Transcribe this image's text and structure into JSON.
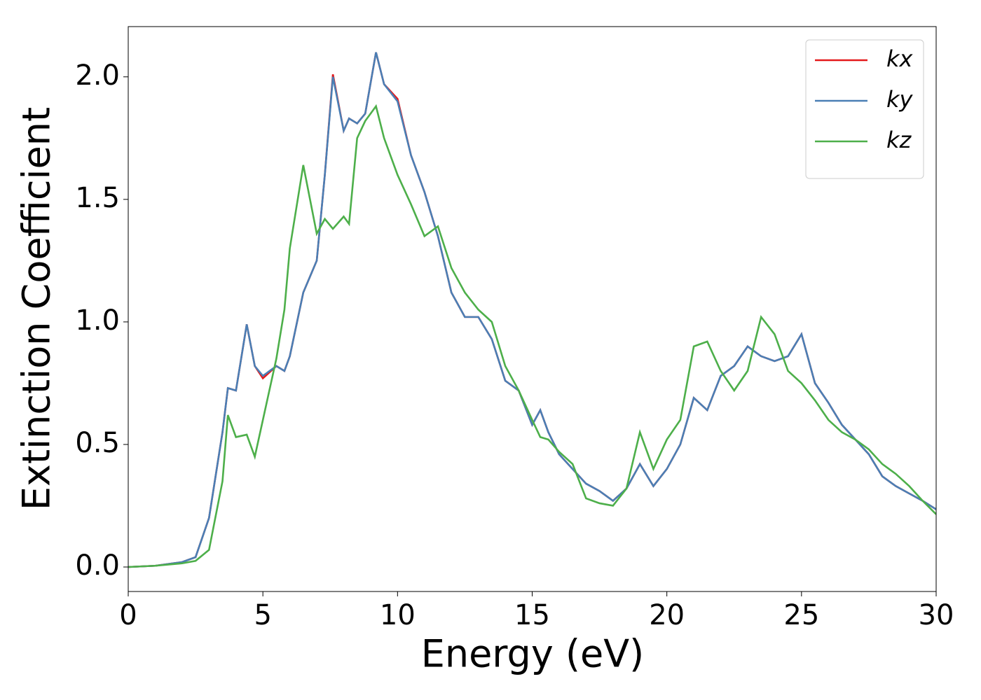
{
  "chart_data": {
    "type": "line",
    "xlabel": "Energy (eV)",
    "ylabel": "Extinction Coefficient",
    "x": [
      0,
      1,
      2,
      2.5,
      3,
      3.5,
      3.7,
      4,
      4.4,
      4.7,
      5,
      5.5,
      5.8,
      6,
      6.5,
      7,
      7.3,
      7.6,
      8,
      8.2,
      8.5,
      8.8,
      9.2,
      9.5,
      10,
      10.5,
      11,
      11.5,
      12,
      12.5,
      13,
      13.5,
      14,
      14.5,
      15,
      15.3,
      15.6,
      16,
      16.5,
      17,
      17.5,
      18,
      18.5,
      19,
      19.5,
      20,
      20.5,
      21,
      21.5,
      22,
      22.5,
      23,
      23.5,
      24,
      24.5,
      25,
      25.5,
      26,
      26.5,
      27,
      27.5,
      28,
      28.5,
      29,
      29.5,
      30
    ],
    "series": [
      {
        "name": "kx",
        "color": "#e41a1c",
        "values": [
          0,
          0.005,
          0.02,
          0.04,
          0.2,
          0.55,
          0.73,
          0.72,
          0.99,
          0.82,
          0.77,
          0.82,
          0.8,
          0.86,
          1.12,
          1.25,
          1.6,
          2.01,
          1.78,
          1.83,
          1.81,
          1.85,
          2.1,
          1.97,
          1.91,
          1.68,
          1.53,
          1.35,
          1.12,
          1.02,
          1.02,
          0.93,
          0.76,
          0.72,
          0.58,
          0.64,
          0.55,
          0.46,
          0.4,
          0.34,
          0.31,
          0.27,
          0.32,
          0.42,
          0.33,
          0.4,
          0.5,
          0.69,
          0.64,
          0.78,
          0.82,
          0.9,
          0.86,
          0.84,
          0.86,
          0.95,
          0.75,
          0.67,
          0.58,
          0.52,
          0.46,
          0.37,
          0.33,
          0.3,
          0.27,
          0.235
        ]
      },
      {
        "name": "ky",
        "color": "#4a7fb5",
        "values": [
          0,
          0.005,
          0.02,
          0.04,
          0.2,
          0.55,
          0.73,
          0.72,
          0.99,
          0.82,
          0.78,
          0.82,
          0.8,
          0.86,
          1.12,
          1.25,
          1.6,
          2.0,
          1.78,
          1.83,
          1.81,
          1.85,
          2.1,
          1.97,
          1.9,
          1.68,
          1.53,
          1.35,
          1.12,
          1.02,
          1.02,
          0.93,
          0.76,
          0.72,
          0.58,
          0.64,
          0.55,
          0.46,
          0.4,
          0.34,
          0.31,
          0.27,
          0.32,
          0.42,
          0.33,
          0.4,
          0.5,
          0.69,
          0.64,
          0.78,
          0.82,
          0.9,
          0.86,
          0.84,
          0.86,
          0.95,
          0.75,
          0.67,
          0.58,
          0.52,
          0.46,
          0.37,
          0.33,
          0.3,
          0.27,
          0.235
        ]
      },
      {
        "name": "kz",
        "color": "#4daf4a",
        "values": [
          0,
          0.005,
          0.015,
          0.025,
          0.07,
          0.35,
          0.62,
          0.53,
          0.54,
          0.45,
          0.6,
          0.85,
          1.05,
          1.3,
          1.64,
          1.36,
          1.42,
          1.38,
          1.43,
          1.4,
          1.75,
          1.82,
          1.88,
          1.75,
          1.6,
          1.48,
          1.35,
          1.39,
          1.22,
          1.12,
          1.05,
          1.0,
          0.82,
          0.72,
          0.6,
          0.53,
          0.52,
          0.47,
          0.42,
          0.28,
          0.26,
          0.25,
          0.32,
          0.55,
          0.4,
          0.52,
          0.6,
          0.9,
          0.92,
          0.8,
          0.72,
          0.8,
          1.02,
          0.95,
          0.8,
          0.75,
          0.68,
          0.6,
          0.55,
          0.52,
          0.48,
          0.42,
          0.38,
          0.33,
          0.27,
          0.215
        ]
      }
    ],
    "xlim": [
      0,
      30
    ],
    "xticks": [
      0,
      5,
      10,
      15,
      20,
      25,
      30
    ],
    "ylim": [
      -0.1,
      2.205
    ],
    "yticks": [
      {
        "value": 0,
        "label": "0.0"
      },
      0.5,
      {
        "value": 1,
        "label": "1.0"
      },
      1.5,
      {
        "value": 2,
        "label": "2.0"
      }
    ],
    "legend": "upper right",
    "grid": false
  }
}
